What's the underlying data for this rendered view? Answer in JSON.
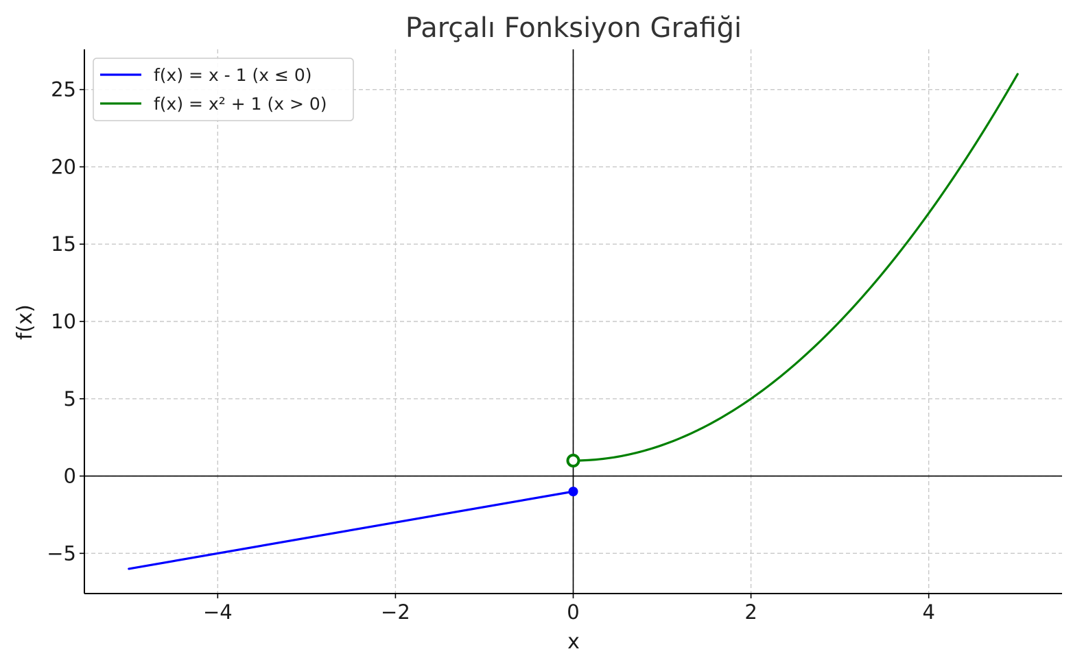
{
  "chart_data": {
    "type": "line",
    "title": "Parçalı Fonksiyon Grafiği",
    "xlabel": "x",
    "ylabel": "f(x)",
    "xlim": [
      -5.5,
      5.5
    ],
    "ylim": [
      -7.6,
      27.6
    ],
    "x_ticks": [
      -4,
      -2,
      0,
      2,
      4
    ],
    "x_tick_labels": [
      "−4",
      "−2",
      "0",
      "2",
      "4"
    ],
    "y_ticks": [
      -5,
      0,
      5,
      10,
      15,
      20,
      25
    ],
    "y_tick_labels": [
      "−5",
      "0",
      "5",
      "10",
      "15",
      "20",
      "25"
    ],
    "grid": true,
    "legend_position": "top-left",
    "series": [
      {
        "name": "f(x) = x - 1 (x ≤ 0)",
        "color": "#0000ff",
        "x": [
          -5,
          0
        ],
        "y": [
          -6,
          -1
        ],
        "endpoint": {
          "x": 0,
          "y": -1,
          "style": "filled"
        }
      },
      {
        "name": "f(x) = x² + 1 (x > 0)",
        "color": "#008000",
        "x": [
          0,
          0.5,
          1,
          1.5,
          2,
          2.5,
          3,
          3.5,
          4,
          4.5,
          5
        ],
        "y": [
          1,
          1.25,
          2,
          3.25,
          5,
          7.25,
          10,
          13.25,
          17,
          21.25,
          26
        ],
        "endpoint": {
          "x": 0,
          "y": 1,
          "style": "open"
        }
      }
    ],
    "reference_lines": {
      "x": 0,
      "y": 0,
      "color": "#000000"
    }
  }
}
